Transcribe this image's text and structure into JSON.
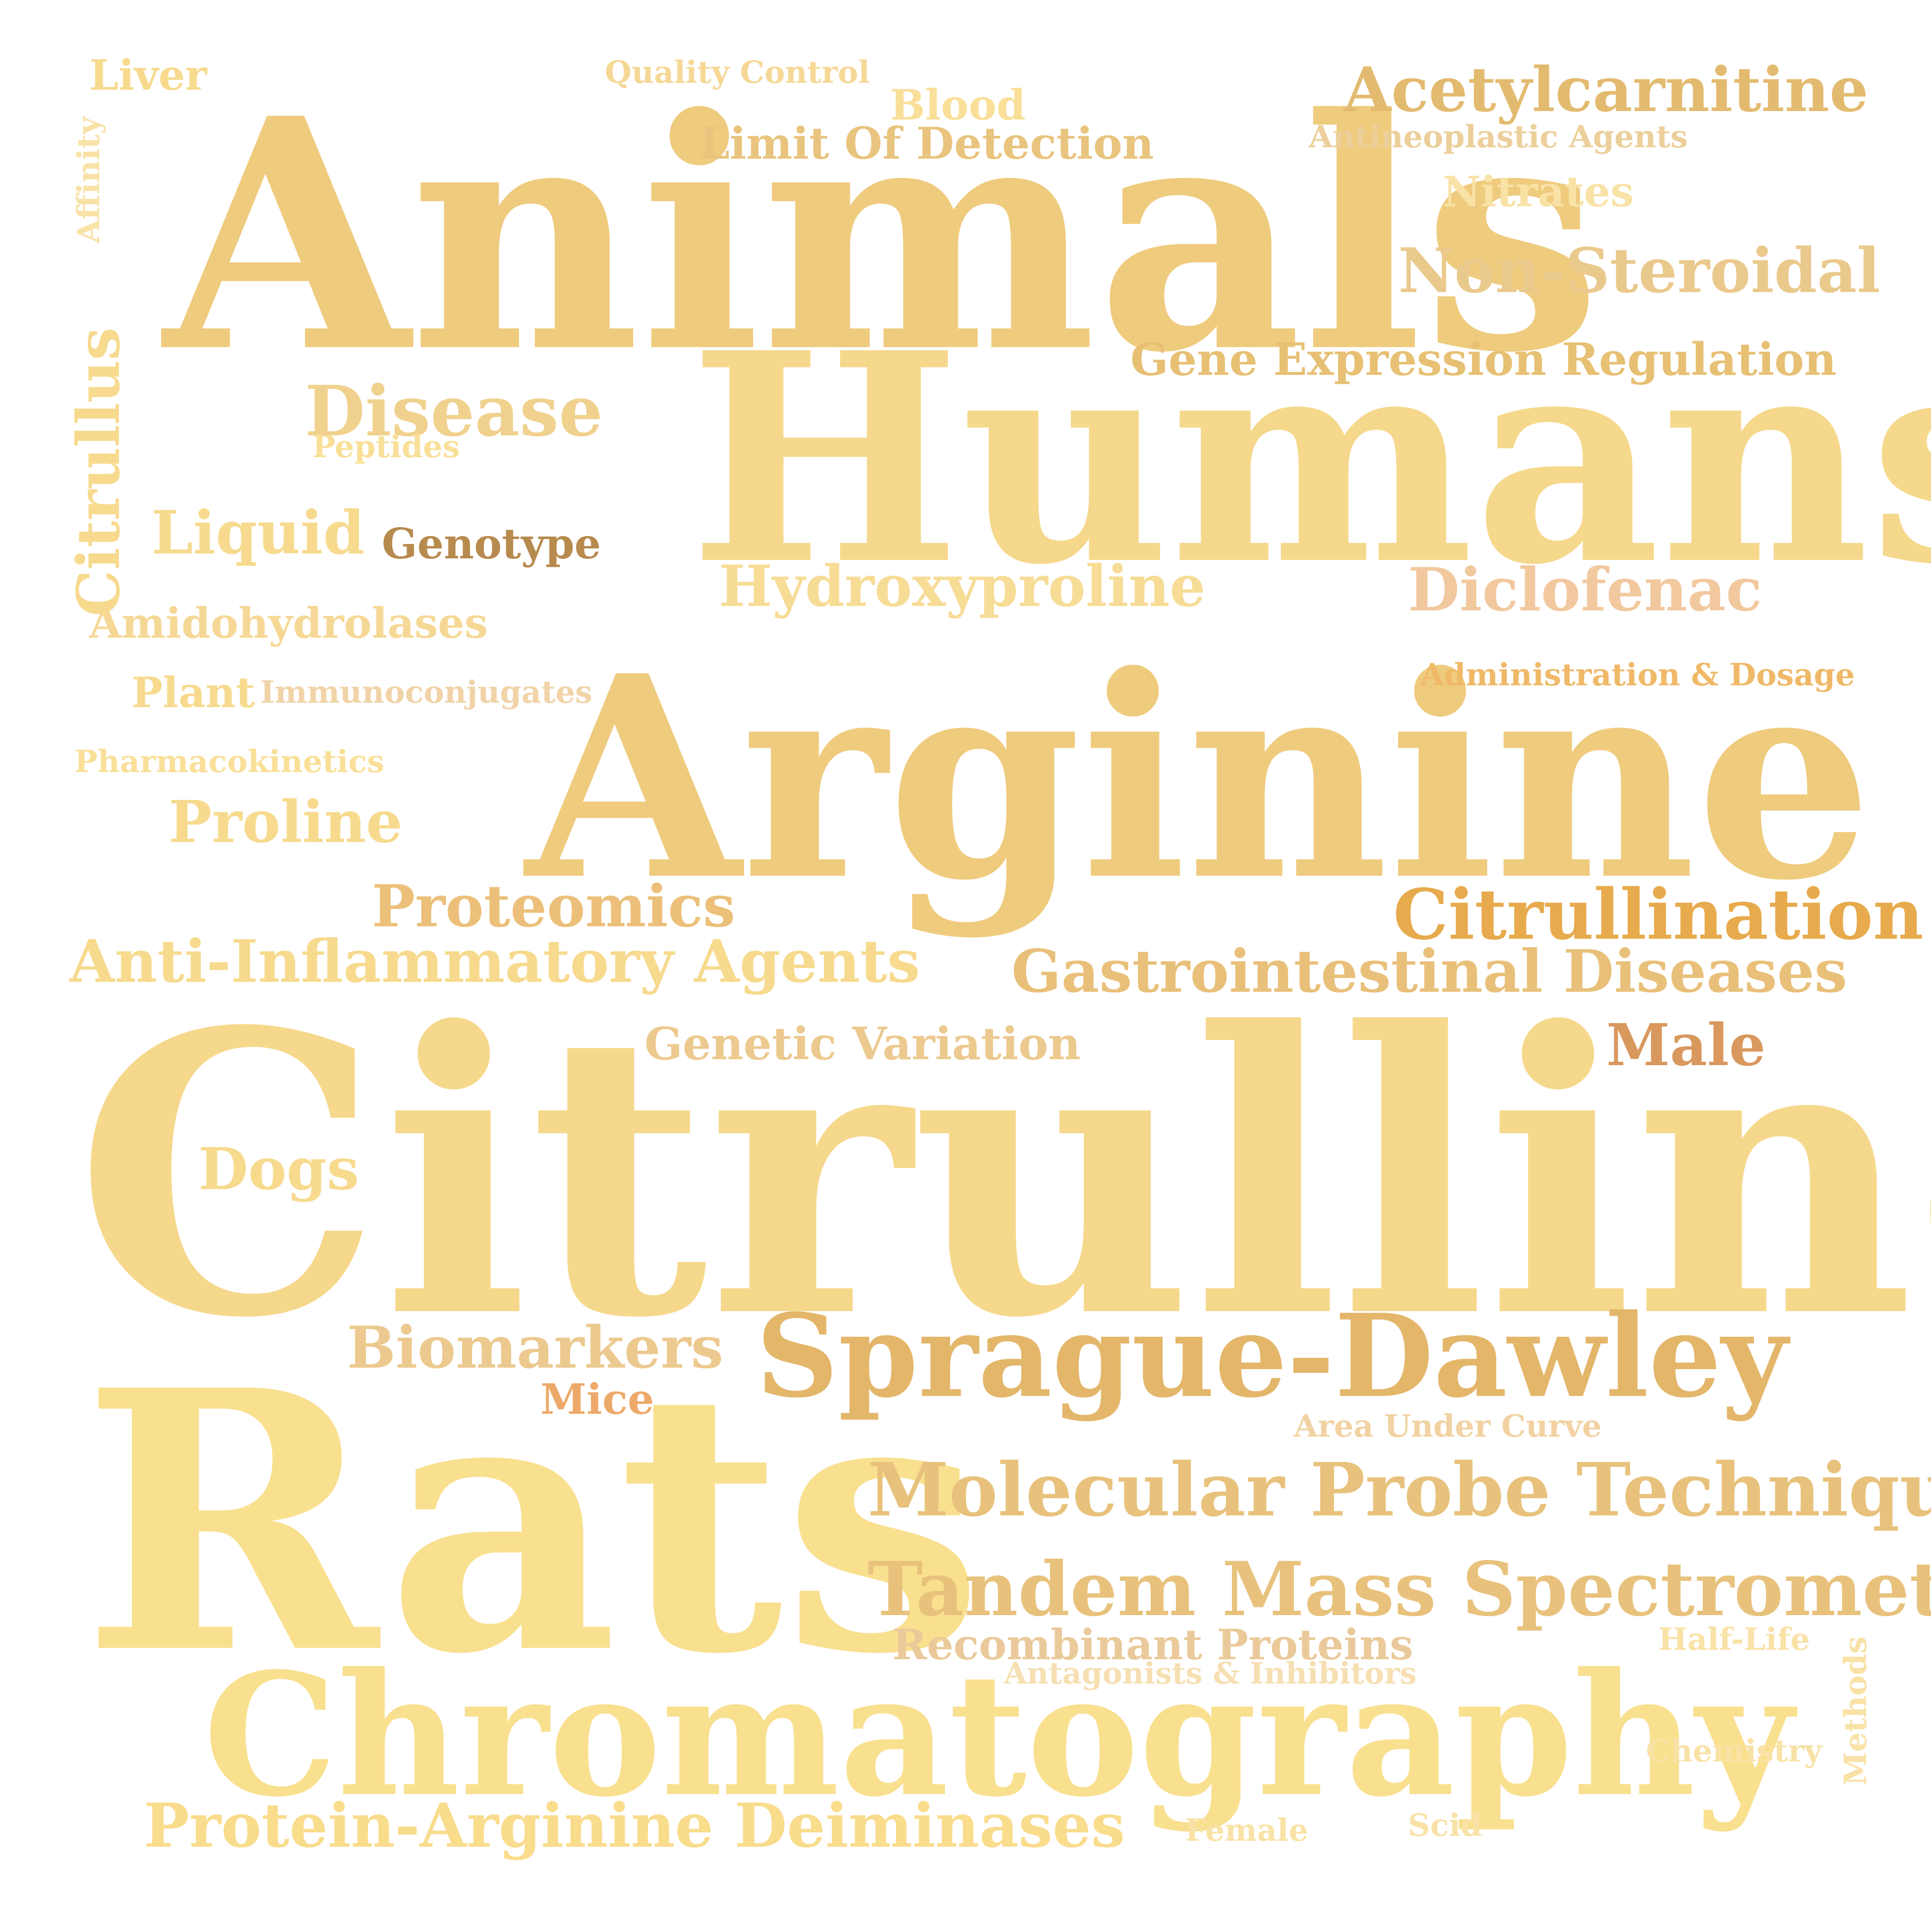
{
  "words": [
    {
      "text": "Animals",
      "color": "#efcb7e"
    },
    {
      "text": "Humans",
      "color": "#f6d88c"
    },
    {
      "text": "Arginine",
      "color": "#efcb7e"
    },
    {
      "text": "Citrulline",
      "color": "#f6d88c"
    },
    {
      "text": "Rats",
      "color": "#f9e08f"
    },
    {
      "text": "Chromatography",
      "color": "#f9e08f"
    },
    {
      "text": "Sprague-Dawley",
      "color": "#e3b66a"
    },
    {
      "text": "Tandem Mass Spectrometry",
      "color": "#e8c27c"
    },
    {
      "text": "Molecular Probe Techniques",
      "color": "#e8c27c"
    },
    {
      "text": "Acetylcarnitine",
      "color": "#e3bb70"
    },
    {
      "text": "Non-Steroidal",
      "color": "#eac98c"
    },
    {
      "text": "Gene Expression Regulation",
      "color": "#e7c074"
    },
    {
      "text": "Citrullination",
      "color": "#e7aa4c"
    },
    {
      "text": "Gastrointestinal Diseases",
      "color": "#e9c07a"
    },
    {
      "text": "Anti-Inflammatory Agents",
      "color": "#f7da8e"
    },
    {
      "text": "Proteomics",
      "color": "#ecc07a"
    },
    {
      "text": "Disease",
      "color": "#f0d18d"
    },
    {
      "text": "Hydroxyproline",
      "color": "#f7dc96"
    },
    {
      "text": "Diclofenac",
      "color": "#f2c89e"
    },
    {
      "text": "Liquid",
      "color": "#f7da8e"
    },
    {
      "text": "Genotype",
      "color": "#b78a4e"
    },
    {
      "text": "Protein-Arginine Deiminases",
      "color": "#f9dc8c"
    },
    {
      "text": "Biomarkers",
      "color": "#ecc98e"
    },
    {
      "text": "Limit Of Detection",
      "color": "#e9c47e"
    },
    {
      "text": "Male",
      "color": "#d9985e"
    },
    {
      "text": "Proline",
      "color": "#f7da8e"
    },
    {
      "text": "Genetic Variation",
      "color": "#ecc98e"
    },
    {
      "text": "Dogs",
      "color": "#f7da8e"
    },
    {
      "text": "Amidohydrolases",
      "color": "#f6d896"
    },
    {
      "text": "Nitrates",
      "color": "#f9e2a6"
    },
    {
      "text": "Blood",
      "color": "#f9df98"
    },
    {
      "text": "Liver",
      "color": "#f7da8e"
    },
    {
      "text": "Recombinant Proteins",
      "color": "#eac99a"
    },
    {
      "text": "Antagonists & Inhibitors",
      "color": "#f6dfb2"
    },
    {
      "text": "Quality Control",
      "color": "#f6d896"
    },
    {
      "text": "Antineoplastic Agents",
      "color": "#eccf9a"
    },
    {
      "text": "Administration & Dosage",
      "color": "#efb968"
    },
    {
      "text": "Plant",
      "color": "#f7da8e"
    },
    {
      "text": "Immunoconjugates",
      "color": "#f1d3a8"
    },
    {
      "text": "Pharmacokinetics",
      "color": "#f9df98"
    },
    {
      "text": "Peptides",
      "color": "#f9df98"
    },
    {
      "text": "Mice",
      "color": "#eda96a"
    },
    {
      "text": "Area Under Curve",
      "color": "#f2d2a2"
    },
    {
      "text": "Half-Life",
      "color": "#f9e2a6"
    },
    {
      "text": "Chemistry",
      "color": "#f9e2a6"
    },
    {
      "text": "Female",
      "color": "#f9e2a6"
    },
    {
      "text": "Scid",
      "color": "#f9e2a6"
    },
    {
      "text": "Citrullus",
      "color": "#f7da8e"
    },
    {
      "text": "Affinity",
      "color": "#f9e2a6"
    },
    {
      "text": "Methods",
      "color": "#f9e2a6"
    }
  ]
}
